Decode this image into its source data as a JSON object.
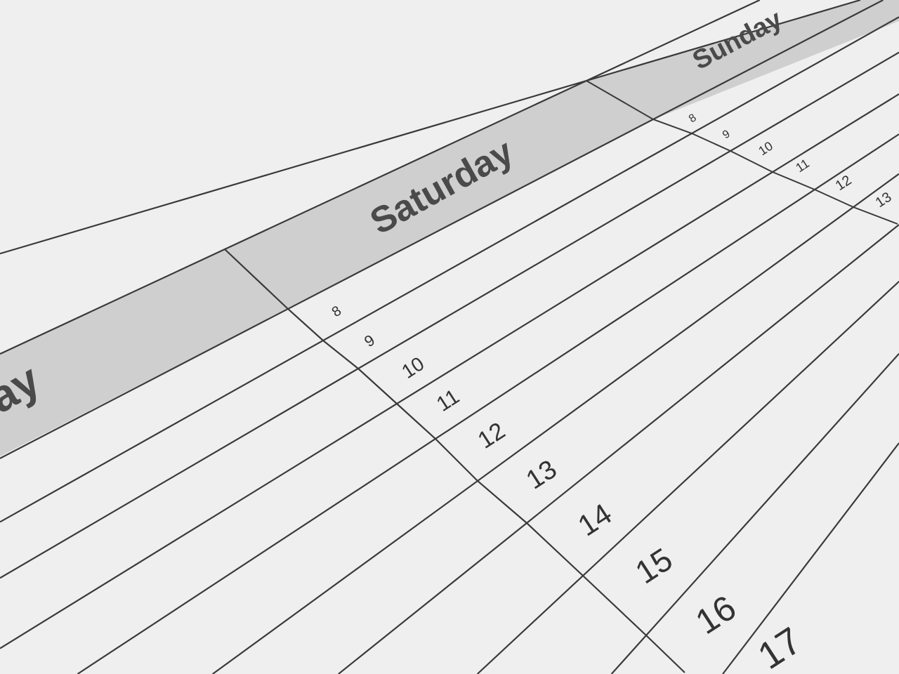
{
  "planner": {
    "days": {
      "partial_day": "ay",
      "saturday": "Saturday",
      "sunday": "Sunday"
    },
    "saturday_hours": [
      "8",
      "9",
      "10",
      "11",
      "12",
      "13",
      "14",
      "15",
      "16",
      "17"
    ],
    "sunday_hours": [
      "8",
      "9",
      "10",
      "11",
      "12",
      "13"
    ],
    "colors": {
      "paper": "#efefef",
      "header_band": "#cfcfcf",
      "lines": "#3a3a3a",
      "text": "#4a4a4a"
    }
  }
}
